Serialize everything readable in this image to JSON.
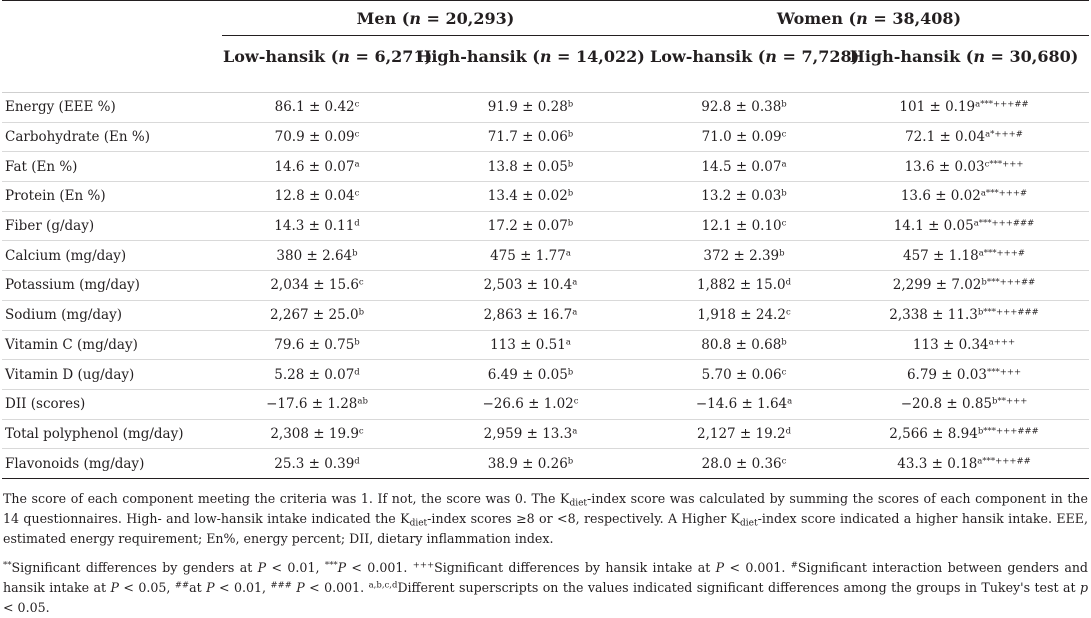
{
  "groups": {
    "men": {
      "label": "Men (",
      "n_var": "n",
      "n_value": " = 20,293)"
    },
    "women": {
      "label": "Women (",
      "n_var": "n",
      "n_value": " = 38,408)"
    }
  },
  "subheaders": [
    {
      "label": "Low-hansik (",
      "n_var": "n",
      "n_value": " = 6,271)"
    },
    {
      "label": "High-hansik (",
      "n_var": "n",
      "n_value": " = 14,022)"
    },
    {
      "label": "Low-hansik (",
      "n_var": "n",
      "n_value": " = 7,728)"
    },
    {
      "label": "High-hansik (",
      "n_var": "n",
      "n_value": " = 30,680)"
    }
  ],
  "rows": [
    {
      "label": "Energy (EEE %)",
      "cells": [
        {
          "v": "86.1 ± 0.42",
          "s": "c"
        },
        {
          "v": "91.9 ± 0.28",
          "s": "b"
        },
        {
          "v": "92.8 ± 0.38",
          "s": "b"
        },
        {
          "v": "101 ± 0.19",
          "s": "a***+++##"
        }
      ]
    },
    {
      "label": "Carbohydrate (En %)",
      "cells": [
        {
          "v": "70.9 ± 0.09",
          "s": "c"
        },
        {
          "v": "71.7 ± 0.06",
          "s": "b"
        },
        {
          "v": "71.0 ± 0.09",
          "s": "c"
        },
        {
          "v": "72.1 ± 0.04",
          "s": "a*+++#"
        }
      ]
    },
    {
      "label": "Fat (En %)",
      "cells": [
        {
          "v": "14.6 ± 0.07",
          "s": "a"
        },
        {
          "v": "13.8 ± 0.05",
          "s": "b"
        },
        {
          "v": "14.5 ± 0.07",
          "s": "a"
        },
        {
          "v": "13.6 ± 0.03",
          "s": "c***+++"
        }
      ]
    },
    {
      "label": "Protein (En %)",
      "cells": [
        {
          "v": "12.8 ± 0.04",
          "s": "c"
        },
        {
          "v": "13.4 ± 0.02",
          "s": "b"
        },
        {
          "v": "13.2 ± 0.03",
          "s": "b"
        },
        {
          "v": "13.6 ± 0.02",
          "s": "a***+++#"
        }
      ]
    },
    {
      "label": "Fiber (g/day)",
      "cells": [
        {
          "v": "14.3 ± 0.11",
          "s": "d"
        },
        {
          "v": "17.2 ± 0.07",
          "s": "b"
        },
        {
          "v": "12.1 ± 0.10",
          "s": "c"
        },
        {
          "v": "14.1 ± 0.05",
          "s": "a***+++###"
        }
      ]
    },
    {
      "label": "Calcium (mg/day)",
      "cells": [
        {
          "v": "380 ± 2.64",
          "s": "b"
        },
        {
          "v": "475 ± 1.77",
          "s": "a"
        },
        {
          "v": "372 ± 2.39",
          "s": "b"
        },
        {
          "v": "457 ± 1.18",
          "s": "a***+++#"
        }
      ]
    },
    {
      "label": "Potassium (mg/day)",
      "cells": [
        {
          "v": "2,034 ± 15.6",
          "s": "c"
        },
        {
          "v": "2,503 ± 10.4",
          "s": "a"
        },
        {
          "v": "1,882 ± 15.0",
          "s": "d"
        },
        {
          "v": "2,299 ± 7.02",
          "s": "b***+++##"
        }
      ]
    },
    {
      "label": "Sodium (mg/day)",
      "cells": [
        {
          "v": "2,267 ± 25.0",
          "s": "b"
        },
        {
          "v": "2,863 ± 16.7",
          "s": "a"
        },
        {
          "v": "1,918 ± 24.2",
          "s": "c"
        },
        {
          "v": "2,338 ± 11.3",
          "s": "b***+++###"
        }
      ]
    },
    {
      "label": "Vitamin C (mg/day)",
      "cells": [
        {
          "v": "79.6 ± 0.75",
          "s": "b"
        },
        {
          "v": "113 ± 0.51",
          "s": "a"
        },
        {
          "v": "80.8 ± 0.68",
          "s": "b"
        },
        {
          "v": "113 ± 0.34",
          "s": "a+++"
        }
      ]
    },
    {
      "label": "Vitamin D (ug/day)",
      "cells": [
        {
          "v": "5.28 ± 0.07",
          "s": "d"
        },
        {
          "v": "6.49 ± 0.05",
          "s": "b"
        },
        {
          "v": "5.70 ± 0.06",
          "s": "c"
        },
        {
          "v": "6.79 ± 0.03",
          "s": "***+++"
        }
      ]
    },
    {
      "label": "DII (scores)",
      "cells": [
        {
          "v": "−17.6 ± 1.28",
          "s": "ab"
        },
        {
          "v": "−26.6 ± 1.02",
          "s": "c"
        },
        {
          "v": "−14.6 ± 1.64",
          "s": "a"
        },
        {
          "v": "−20.8 ± 0.85",
          "s": "b**+++"
        }
      ]
    },
    {
      "label": "Total polyphenol (mg/day)",
      "cells": [
        {
          "v": "2,308 ± 19.9",
          "s": "c"
        },
        {
          "v": "2,959 ± 13.3",
          "s": "a"
        },
        {
          "v": "2,127 ± 19.2",
          "s": "d"
        },
        {
          "v": "2,566 ± 8.94",
          "s": "b***+++###"
        }
      ]
    },
    {
      "label": "Flavonoids (mg/day)",
      "cells": [
        {
          "v": "25.3 ± 0.39",
          "s": "d"
        },
        {
          "v": "38.9 ± 0.26",
          "s": "b"
        },
        {
          "v": "28.0 ± 0.36",
          "s": "c"
        },
        {
          "v": "43.3 ± 0.18",
          "s": "a***+++##"
        }
      ]
    }
  ],
  "notes": {
    "p1": {
      "t1": "The score of each component meeting the criteria was 1. If not, the score was 0. The K",
      "sub1": "diet",
      "t2": "-index score was calculated by summing the scores of each component in the 14 questionnaires. High- and low-hansik intake indicated the K",
      "sub2": "diet",
      "t3": "-index scores ≥8 or <8, respectively. A Higher K",
      "sub3": "diet",
      "t4": "-index score indicated a higher hansik intake. EEE, estimated energy requirement; En%, energy percent; DII, dietary inflammation index."
    },
    "p2": {
      "s1": "**",
      "t1": "Significant differences by genders at ",
      "p": "P",
      "t2": " < 0.01, ",
      "s2": "***",
      "t3": " < 0.001. ",
      "s3": "+++",
      "t4": "Significant differences by hansik intake at ",
      "t5": " < 0.001. ",
      "s4": "#",
      "t6": "Significant interaction between genders and hansik intake at ",
      "t7": " < 0.05, ",
      "s5": "##",
      "t8": "at ",
      "t9": " < 0.01, ",
      "s6": "###",
      "t10": " ",
      "t11": " < 0.001. ",
      "s7": "a,b,c,d",
      "t12": "Different superscripts on the values indicated significant differences among the groups in Tukey's test at ",
      "pl": "p",
      "t13": " < 0.05."
    }
  }
}
